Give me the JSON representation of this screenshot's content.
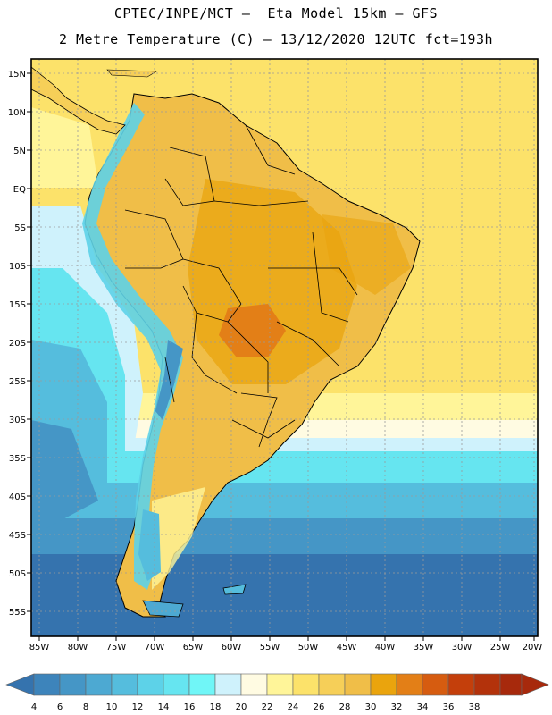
{
  "header": {
    "line1": "CPTEC/INPE/MCT –  Eta Model 15km – GFS",
    "line2": "2 Metre Temperature (C) – 13/12/2020 12UTC fct=193h"
  },
  "map": {
    "lat_labels": [
      "15N",
      "10N",
      "5N",
      "EQ",
      "5S",
      "10S",
      "15S",
      "20S",
      "25S",
      "30S",
      "35S",
      "40S",
      "45S",
      "50S",
      "55S"
    ],
    "lon_labels": [
      "85W",
      "80W",
      "75W",
      "70W",
      "65W",
      "60W",
      "55W",
      "50W",
      "45W",
      "40W",
      "35W",
      "30W",
      "25W",
      "20W"
    ]
  },
  "colorbar": {
    "labels": [
      "4",
      "6",
      "8",
      "10",
      "12",
      "14",
      "16",
      "18",
      "20",
      "22",
      "24",
      "26",
      "28",
      "30",
      "32",
      "34",
      "36",
      "38"
    ],
    "colors": [
      "#3573ae",
      "#3d84bb",
      "#4596c6",
      "#4da9d2",
      "#55bddd",
      "#5dd2e8",
      "#66e5f0",
      "#70f6f7",
      "#cff2fc",
      "#fffbe2",
      "#fff599",
      "#fce26a",
      "#f6cf58",
      "#f0be48",
      "#eaa40d",
      "#e37f17",
      "#d65c10",
      "#c43f0b",
      "#a7290c"
    ]
  },
  "colors": {
    "frame": "#000000",
    "grid": "#9a9a9a",
    "ocean_cold": "#3573ae",
    "ocean_mid": "#55bddd",
    "ocean_warm": "#fff599",
    "land": "#f0be48",
    "land_hot": "#e37f17",
    "andes": "#5dd2e8"
  }
}
